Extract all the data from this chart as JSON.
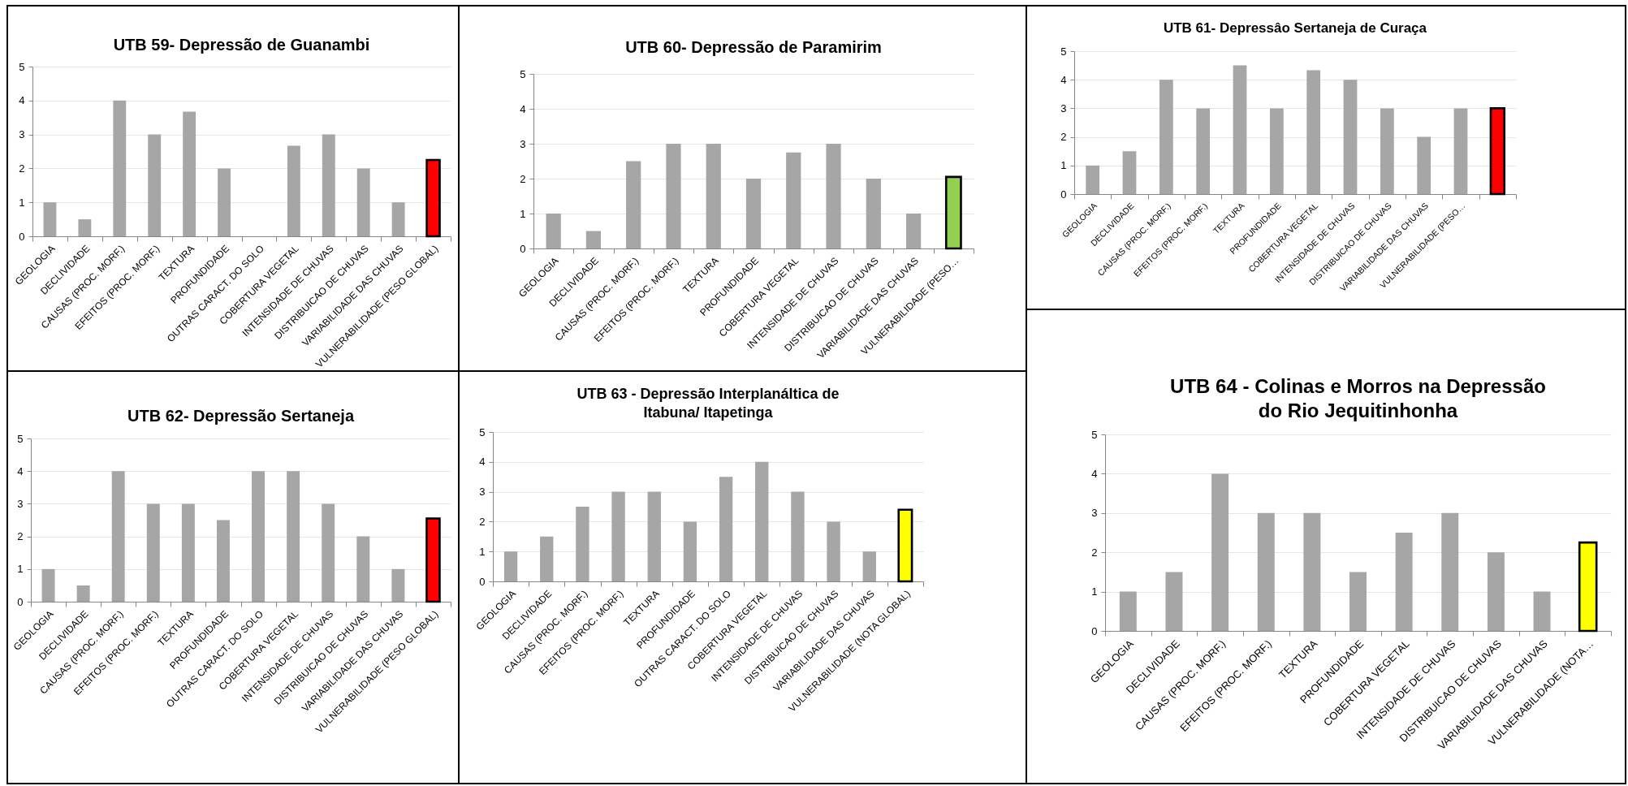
{
  "chart_data": [
    {
      "type": "bar",
      "title": "UTB 59- Depressão de Guanambi",
      "categories": [
        "GEOLOGIA",
        "DECLIVIDADE",
        "CAUSAS (PROC. MORF.)",
        "EFEITOS (PROC. MORF.)",
        "TEXTURA",
        "PROFUNDIDADE",
        "OUTRAS CARACT. DO SOLO",
        "COBERTURA VEGETAL",
        "INTENSIDADE DE CHUVAS",
        "DISTRIBUICAO DE CHUVAS",
        "VARIABILIDADE DAS CHUVAS",
        "VULNERABILIDADE (PESO GLOBAL)"
      ],
      "values": [
        1,
        0.5,
        4,
        3,
        3.67,
        2,
        null,
        2.67,
        3,
        2,
        1,
        2.25
      ],
      "colors": [
        "#a6a6a6",
        "#a6a6a6",
        "#a6a6a6",
        "#a6a6a6",
        "#a6a6a6",
        "#a6a6a6",
        "#a6a6a6",
        "#a6a6a6",
        "#a6a6a6",
        "#a6a6a6",
        "#a6a6a6",
        "#ff0000"
      ],
      "ylim": [
        0,
        5
      ],
      "yticks": [
        0,
        1,
        2,
        3,
        4,
        5
      ],
      "grid": "y"
    },
    {
      "type": "bar",
      "title": "UTB 60- Depressão de Paramirim",
      "categories": [
        "GEOLOGIA",
        "DECLIVIDADE",
        "CAUSAS (PROC. MORF.)",
        "EFEITOS (PROC. MORF.)",
        "TEXTURA",
        "PROFUNDIDADE",
        "COBERTURA VEGETAL",
        "INTENSIDADE DE CHUVAS",
        "DISTRIBUICAO DE CHUVAS",
        "VARIABILIDADE DAS CHUVAS",
        "VULNERABILIDADE (PESO…"
      ],
      "values": [
        1,
        0.5,
        2.5,
        3,
        3,
        2,
        2.75,
        3,
        2,
        1,
        2.05
      ],
      "colors": [
        "#a6a6a6",
        "#a6a6a6",
        "#a6a6a6",
        "#a6a6a6",
        "#a6a6a6",
        "#a6a6a6",
        "#a6a6a6",
        "#a6a6a6",
        "#a6a6a6",
        "#a6a6a6",
        "#92d050"
      ],
      "ylim": [
        0,
        5
      ],
      "yticks": [
        0,
        1,
        2,
        3,
        4,
        5
      ],
      "grid": "y"
    },
    {
      "type": "bar",
      "title": "UTB 61- Depressâo Sertaneja de Curaça",
      "categories": [
        "GEOLOGIA",
        "DECLIVIDADE",
        "CAUSAS (PROC. MORF.)",
        "EFEITOS (PROC. MORF.)",
        "TEXTURA",
        "PROFUNDIDADE",
        "COBERTURA VEGETAL",
        "INTENSIDADE DE CHUVAS",
        "DISTRIBUICAO DE CHUVAS",
        "VARIABILIDADE DAS CHUVAS",
        "VULNERABILIDADE (PESO…",
        null
      ],
      "values": [
        1,
        1.5,
        4,
        3,
        4.5,
        3,
        4.33,
        4,
        3,
        2,
        3,
        3
      ],
      "colors": [
        "#a6a6a6",
        "#a6a6a6",
        "#a6a6a6",
        "#a6a6a6",
        "#a6a6a6",
        "#a6a6a6",
        "#a6a6a6",
        "#a6a6a6",
        "#a6a6a6",
        "#a6a6a6",
        "#a6a6a6",
        "#ff0000"
      ],
      "ylim": [
        0,
        5
      ],
      "yticks": [
        0,
        1,
        2,
        3,
        4,
        5
      ],
      "grid": "y"
    },
    {
      "type": "bar",
      "title": "UTB 62- Depressão Sertaneja",
      "categories": [
        "GEOLOGIA",
        "DECLIVIDADE",
        "CAUSAS (PROC. MORF.)",
        "EFEITOS (PROC. MORF.)",
        "TEXTURA",
        "PROFUNDIDADE",
        "OUTRAS CARACT. DO SOLO",
        "COBERTURA VEGETAL",
        "INTENSIDADE DE CHUVAS",
        "DISTRIBUICAO DE CHUVAS",
        "VARIABILIDADE DAS CHUVAS",
        "VULNERABILIDADE (PESO GLOBAL)"
      ],
      "values": [
        1,
        0.5,
        4,
        3,
        3,
        2.5,
        4,
        4,
        3,
        2,
        1,
        2.55
      ],
      "colors": [
        "#a6a6a6",
        "#a6a6a6",
        "#a6a6a6",
        "#a6a6a6",
        "#a6a6a6",
        "#a6a6a6",
        "#a6a6a6",
        "#a6a6a6",
        "#a6a6a6",
        "#a6a6a6",
        "#a6a6a6",
        "#ff0000"
      ],
      "ylim": [
        0,
        5
      ],
      "yticks": [
        0,
        1,
        2,
        3,
        4,
        5
      ],
      "grid": "y"
    },
    {
      "type": "bar",
      "title": "UTB 63 - Depressão Interplanáltica de Itabuna/ Itapetinga",
      "categories": [
        "GEOLOGIA",
        "DECLIVIDADE",
        "CAUSAS (PROC. MORF.)",
        "EFEITOS (PROC. MORF.)",
        "TEXTURA",
        "PROFUNDIDADE",
        "OUTRAS CARACT. DO SOLO",
        "COBERTURA VEGETAL",
        "INTENSIDADE DE CHUVAS",
        "DISTRIBUICAO DE CHUVAS",
        "VARIABILIDADE DAS CHUVAS",
        "VULNERABILIDADE (NOTA GLOBAL)"
      ],
      "values": [
        1,
        1.5,
        2.5,
        3,
        3,
        2,
        3.5,
        4,
        3,
        2,
        1,
        2.4
      ],
      "colors": [
        "#a6a6a6",
        "#a6a6a6",
        "#a6a6a6",
        "#a6a6a6",
        "#a6a6a6",
        "#a6a6a6",
        "#a6a6a6",
        "#a6a6a6",
        "#a6a6a6",
        "#a6a6a6",
        "#a6a6a6",
        "#ffff00"
      ],
      "ylim": [
        0,
        5
      ],
      "yticks": [
        0,
        1,
        2,
        3,
        4,
        5
      ],
      "grid": "y"
    },
    {
      "type": "bar",
      "title": "UTB 64 - Colinas e Morros na Depressão do Rio Jequitinhonha",
      "categories": [
        "GEOLOGIA",
        "DECLIVIDADE",
        "CAUSAS (PROC. MORF.)",
        "EFEITOS (PROC. MORF.)",
        "TEXTURA",
        "PROFUNDIDADE",
        "COBERTURA VEGETAL",
        "INTENSIDADE DE CHUVAS",
        "DISTRIBUICAO DE CHUVAS",
        "VARIABILIDADE DAS CHUVAS",
        "VULNERABILIDADE (NOTA…"
      ],
      "values": [
        1,
        1.5,
        4,
        3,
        3,
        1.5,
        2.5,
        3,
        2,
        1,
        2.25
      ],
      "colors": [
        "#a6a6a6",
        "#a6a6a6",
        "#a6a6a6",
        "#a6a6a6",
        "#a6a6a6",
        "#a6a6a6",
        "#a6a6a6",
        "#a6a6a6",
        "#a6a6a6",
        "#a6a6a6",
        "#ffff00"
      ],
      "ylim": [
        0,
        5
      ],
      "yticks": [
        0,
        1,
        2,
        3,
        4,
        5
      ],
      "grid": "y"
    }
  ]
}
